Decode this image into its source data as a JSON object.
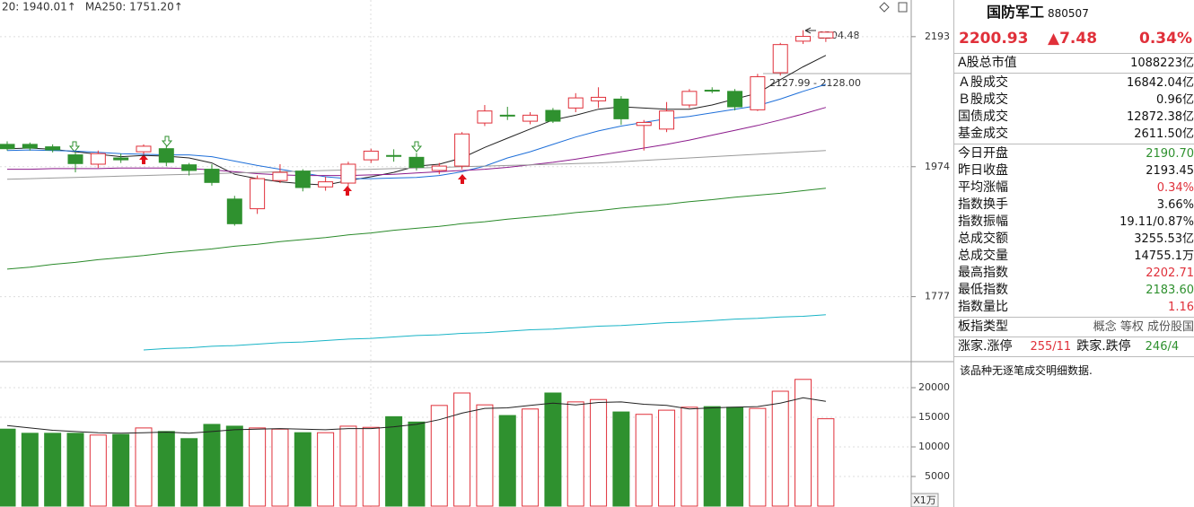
{
  "chart_data": [
    {
      "type": "candlestick",
      "legend": [
        {
          "label": "20: 1940.01↑",
          "color": "#2a8a2a"
        },
        {
          "label": "MA250: 1751.20↑",
          "color": "#19b4c6"
        }
      ],
      "annotation": "2127.99 - 2128.00",
      "log_scale": true,
      "ylim": [
        1686,
        2259
      ],
      "yticks": [
        1777,
        1974,
        2193
      ],
      "grid": true,
      "up_color": "#e0303a",
      "down_color": "#2f912f",
      "open": [
        2010,
        2010,
        2006,
        1993,
        1978,
        1988,
        1998,
        2003,
        1977,
        1970,
        1923,
        1908,
        1952,
        1967,
        1942,
        1948,
        1985,
        1992,
        1989,
        1968,
        1975,
        2045,
        2058,
        2048,
        2066,
        2070,
        2082,
        2085,
        2041,
        2035,
        2075,
        2100,
        2098,
        2067,
        2130,
        2185,
        2190.7
      ],
      "high": [
        2015,
        2013,
        2010,
        1998,
        2000,
        1995,
        2010,
        2008,
        1980,
        1978,
        1928,
        1960,
        1978,
        1970,
        1958,
        1982,
        2003,
        2002,
        1996,
        1980,
        2030,
        2075,
        2072,
        2063,
        2070,
        2095,
        2105,
        2090,
        2050,
        2080,
        2102,
        2105,
        2102,
        2128,
        2182,
        2204.48,
        2202.71
      ],
      "low": [
        2000,
        2000,
        1997,
        1965,
        1972,
        1980,
        1994,
        1975,
        1960,
        1944,
        1882,
        1900,
        1948,
        1935,
        1936,
        1940,
        1980,
        1982,
        1968,
        1962,
        1970,
        2040,
        2050,
        2043,
        2045,
        2063,
        2070,
        2042,
        2000,
        2030,
        2070,
        2095,
        2066,
        2065,
        2125,
        2180,
        2183.6
      ],
      "close": [
        2003,
        2004,
        2001,
        1979,
        1995,
        1985,
        2007,
        1981,
        1968,
        1949,
        1885,
        1955,
        1965,
        1941,
        1950,
        1978,
        1999,
        1991,
        1973,
        1975,
        2027,
        2065,
        2057,
        2058,
        2048,
        2087,
        2088,
        2052,
        2046,
        2065,
        2098,
        2099,
        2072,
        2123,
        2179,
        2193.45,
        2200.93
      ],
      "lines": [
        {
          "color": "#222222",
          "values": [
            2003,
            2004,
            2002,
            1998,
            1994,
            1990,
            1992,
            1991,
            1988,
            1980,
            1962,
            1955,
            1950,
            1947,
            1945,
            1952,
            1958,
            1965,
            1975,
            1978,
            1988,
            2005,
            2020,
            2035,
            2050,
            2058,
            2068,
            2072,
            2070,
            2068,
            2068,
            2075,
            2085,
            2095,
            2118,
            2140,
            2160
          ]
        },
        {
          "color": "#1e6fd9",
          "values": [
            2000,
            2001,
            2000,
            1999,
            1997,
            1995,
            1994,
            1993,
            1993,
            1990,
            1983,
            1976,
            1970,
            1964,
            1958,
            1955,
            1955,
            1956,
            1957,
            1960,
            1966,
            1975,
            1988,
            1998,
            2010,
            2022,
            2032,
            2040,
            2046,
            2052,
            2056,
            2062,
            2068,
            2074,
            2085,
            2098,
            2110
          ]
        },
        {
          "color": "#8b1a8b",
          "values": [
            1970,
            1970,
            1971,
            1971,
            1971,
            1972,
            1972,
            1972,
            1971,
            1969,
            1966,
            1963,
            1961,
            1960,
            1960,
            1960,
            1961,
            1962,
            1964,
            1966,
            1968,
            1970,
            1973,
            1977,
            1981,
            1986,
            1992,
            1998,
            2004,
            2010,
            2017,
            2025,
            2033,
            2041,
            2050,
            2060,
            2071
          ]
        },
        {
          "color": "#9a9a9a",
          "values": [
            1954,
            1955,
            1956,
            1957,
            1958,
            1959,
            1960,
            1961,
            1962,
            1963,
            1964,
            1965,
            1966,
            1967,
            1968,
            1969,
            1970,
            1971,
            1972,
            1973,
            1974,
            1975,
            1976,
            1977,
            1978,
            1979,
            1980,
            1982,
            1984,
            1986,
            1988,
            1990,
            1992,
            1994,
            1996,
            1998,
            2000
          ]
        },
        {
          "color": "#2a8a2a",
          "values": [
            1817,
            1820,
            1824,
            1827,
            1831,
            1834,
            1837,
            1841,
            1844,
            1847,
            1851,
            1854,
            1858,
            1861,
            1864,
            1868,
            1871,
            1875,
            1878,
            1881,
            1885,
            1888,
            1892,
            1895,
            1898,
            1902,
            1905,
            1909,
            1912,
            1915,
            1919,
            1922,
            1926,
            1929,
            1932,
            1936,
            1940.01
          ]
        },
        {
          "color": "#19b4c6",
          "values": [
            null,
            null,
            null,
            null,
            null,
            null,
            1702,
            1704,
            1705,
            1707,
            1708,
            1710,
            1712,
            1713,
            1715,
            1717,
            1718,
            1720,
            1722,
            1723,
            1725,
            1726,
            1728,
            1730,
            1731,
            1733,
            1735,
            1736,
            1738,
            1740,
            1741,
            1743,
            1745,
            1746,
            1748,
            1749,
            1751.2
          ]
        }
      ]
    },
    {
      "type": "bar",
      "unit_label": "X1万",
      "ylim": [
        0,
        24400
      ],
      "yticks": [
        5000,
        10000,
        15000,
        20000
      ],
      "grid": true,
      "values": [
        13000,
        12300,
        12300,
        12300,
        12000,
        12100,
        13200,
        12600,
        11400,
        13800,
        13500,
        13200,
        13000,
        12400,
        12400,
        13500,
        13300,
        15100,
        14200,
        17000,
        19100,
        17100,
        15300,
        16400,
        19100,
        17600,
        18000,
        15900,
        15500,
        16200,
        16700,
        16800,
        16700,
        16500,
        19400,
        21400,
        14755.1
      ],
      "lines": [
        {
          "color": "#222222",
          "values": [
            13600,
            13200,
            12800,
            12600,
            12400,
            12300,
            12400,
            12500,
            12300,
            12600,
            12900,
            13000,
            13100,
            13000,
            12900,
            13100,
            13100,
            13400,
            13800,
            14600,
            15700,
            16500,
            16600,
            17000,
            17400,
            17100,
            17500,
            17600,
            17200,
            17000,
            16400,
            16600,
            16700,
            16800,
            17400,
            18300,
            17700
          ]
        }
      ]
    }
  ],
  "panel": {
    "name": "国防军工",
    "code": "880507",
    "price": "2200.93",
    "change": "▲7.48",
    "change_pct": "0.34%",
    "sections": [
      [
        {
          "label": "A股总市值",
          "value": "1088223亿",
          "color": "#111111"
        }
      ],
      [
        {
          "label": "Ａ股成交",
          "value": "16842.04亿",
          "color": "#111111"
        },
        {
          "label": "Ｂ股成交",
          "value": "0.96亿",
          "color": "#111111"
        },
        {
          "label": "国债成交",
          "value": "12872.38亿",
          "color": "#111111"
        },
        {
          "label": "基金成交",
          "value": "2611.50亿",
          "color": "#111111"
        }
      ],
      [
        {
          "label": "今日开盘",
          "value": "2190.70",
          "color": "#2f912f"
        },
        {
          "label": "昨日收盘",
          "value": "2193.45",
          "color": "#111111"
        },
        {
          "label": "平均涨幅",
          "value": "0.34%",
          "color": "#e0303a"
        },
        {
          "label": "指数换手",
          "value": "3.66%",
          "color": "#111111"
        },
        {
          "label": "指数振幅",
          "value": "19.11/0.87%",
          "color": "#111111"
        },
        {
          "label": "总成交额",
          "value": "3255.53亿",
          "color": "#111111"
        },
        {
          "label": "总成交量",
          "value": "14755.1万",
          "color": "#111111"
        },
        {
          "label": "最高指数",
          "value": "2202.71",
          "color": "#e0303a"
        },
        {
          "label": "最低指数",
          "value": "2183.60",
          "color": "#2f912f"
        },
        {
          "label": "指数量比",
          "value": "1.16",
          "color": "#e0303a"
        }
      ],
      [
        {
          "label": "板指类型",
          "value": "概念 等权 成份股国",
          "color": "#555555"
        }
      ]
    ],
    "breadth": {
      "up_label": "涨家.涨停",
      "up_value": "255/11",
      "down_label": "跌家.跌停",
      "down_value": "246/4"
    },
    "note": "该品种无逐笔成交明细数据."
  }
}
